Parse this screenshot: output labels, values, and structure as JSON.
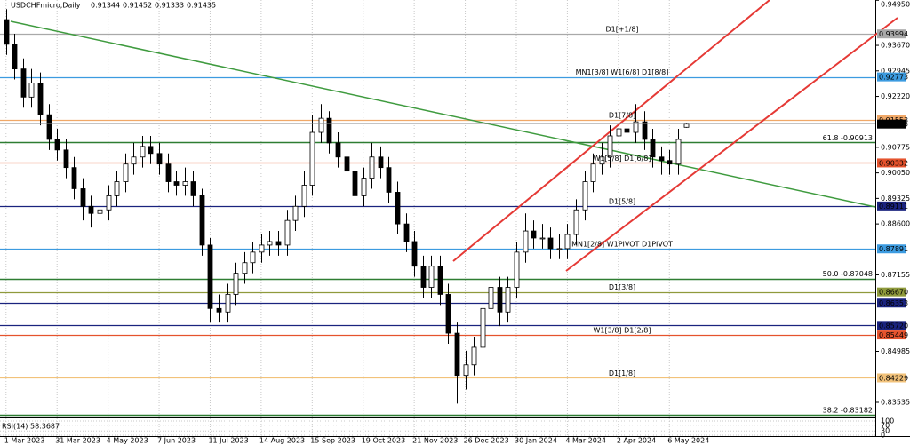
{
  "chart_data": {
    "type": "candlestick",
    "title": "USDCHFmicro,Daily",
    "categories": [
      "1 Mar 2023",
      null,
      null,
      null,
      null,
      null,
      "31 Mar 2023",
      null,
      null,
      null,
      null,
      null,
      "4 May 2023",
      null,
      null,
      null,
      null,
      null,
      "7 Jun 2023",
      null,
      null,
      null,
      null,
      null,
      "11 Jul 2023",
      null,
      null,
      null,
      null,
      null,
      "14 Aug 2023",
      null,
      null,
      null,
      null,
      null,
      "15 Sep 2023",
      null,
      null,
      null,
      null,
      null,
      "19 Oct 2023",
      null,
      null,
      null,
      null,
      null,
      "21 Nov 2023",
      null,
      null,
      null,
      null,
      null,
      "26 Dec 2023",
      null,
      null,
      null,
      null,
      null,
      "30 Jan 2024",
      null,
      null,
      null,
      null,
      null,
      "4 Mar 2024",
      null,
      null,
      null,
      null,
      null,
      "2 Apr 2024",
      null,
      null,
      null,
      null,
      null,
      "6 May 2024",
      null,
      null
    ],
    "open": [
      0.944,
      0.937,
      0.93,
      0.922,
      0.926,
      0.917,
      0.91,
      0.907,
      0.902,
      0.896,
      0.891,
      0.889,
      0.89,
      0.894,
      0.898,
      0.903,
      0.905,
      0.908,
      0.906,
      0.903,
      0.898,
      0.897,
      0.898,
      0.894,
      0.88,
      0.862,
      0.861,
      0.866,
      0.872,
      0.875,
      0.878,
      0.88,
      0.881,
      0.88,
      0.887,
      0.891,
      0.897,
      0.912,
      0.916,
      0.909,
      0.905,
      0.901,
      0.894,
      0.899,
      0.905,
      0.902,
      0.895,
      0.886,
      0.881,
      0.874,
      0.868,
      0.874,
      0.866,
      0.855,
      0.843,
      0.846,
      0.851,
      0.862,
      0.868,
      0.861,
      0.868,
      0.878,
      0.884,
      0.882,
      0.882,
      0.879,
      0.879,
      0.883,
      0.89,
      0.898,
      0.903,
      0.905,
      0.911,
      0.913,
      0.912,
      0.915,
      0.91,
      0.905,
      0.904,
      0.903,
      0.91344
    ],
    "high": [
      0.947,
      0.94,
      0.933,
      0.93,
      0.929,
      0.92,
      0.913,
      0.91,
      0.905,
      0.899,
      0.894,
      0.893,
      0.897,
      0.901,
      0.906,
      0.909,
      0.911,
      0.911,
      0.909,
      0.906,
      0.901,
      0.902,
      0.901,
      0.896,
      0.882,
      0.866,
      0.869,
      0.875,
      0.878,
      0.881,
      0.883,
      0.884,
      0.884,
      0.89,
      0.894,
      0.901,
      0.917,
      0.92,
      0.918,
      0.912,
      0.908,
      0.904,
      0.902,
      0.909,
      0.908,
      0.905,
      0.898,
      0.889,
      0.884,
      0.877,
      0.877,
      0.877,
      0.869,
      0.858,
      0.85,
      0.854,
      0.865,
      0.872,
      0.871,
      0.871,
      0.881,
      0.889,
      0.887,
      0.886,
      0.885,
      0.883,
      0.886,
      0.893,
      0.901,
      0.906,
      0.909,
      0.914,
      0.916,
      0.916,
      0.92,
      0.918,
      0.913,
      0.908,
      0.907,
      0.913,
      0.91452
    ],
    "low": [
      0.934,
      0.927,
      0.919,
      0.919,
      0.914,
      0.907,
      0.904,
      0.899,
      0.893,
      0.887,
      0.885,
      0.886,
      0.887,
      0.891,
      0.895,
      0.9,
      0.902,
      0.903,
      0.9,
      0.895,
      0.894,
      0.894,
      0.891,
      0.877,
      0.858,
      0.858,
      0.858,
      0.863,
      0.869,
      0.872,
      0.875,
      0.877,
      0.877,
      0.877,
      0.884,
      0.888,
      0.894,
      0.909,
      0.906,
      0.902,
      0.898,
      0.891,
      0.891,
      0.896,
      0.899,
      0.892,
      0.883,
      0.878,
      0.871,
      0.865,
      0.865,
      0.863,
      0.852,
      0.835,
      0.839,
      0.843,
      0.848,
      0.859,
      0.857,
      0.858,
      0.865,
      0.875,
      0.879,
      0.879,
      0.876,
      0.876,
      0.876,
      0.88,
      0.887,
      0.895,
      0.9,
      0.902,
      0.908,
      0.909,
      0.909,
      0.907,
      0.902,
      0.9,
      0.9,
      0.9,
      0.91333
    ],
    "close": [
      0.937,
      0.93,
      0.922,
      0.926,
      0.917,
      0.91,
      0.907,
      0.902,
      0.896,
      0.891,
      0.889,
      0.89,
      0.894,
      0.898,
      0.903,
      0.905,
      0.908,
      0.906,
      0.903,
      0.898,
      0.897,
      0.898,
      0.894,
      0.88,
      0.862,
      0.861,
      0.866,
      0.872,
      0.875,
      0.878,
      0.88,
      0.881,
      0.88,
      0.887,
      0.891,
      0.897,
      0.912,
      0.916,
      0.909,
      0.905,
      0.901,
      0.894,
      0.899,
      0.905,
      0.902,
      0.895,
      0.886,
      0.881,
      0.874,
      0.868,
      0.874,
      0.866,
      0.855,
      0.843,
      0.846,
      0.851,
      0.862,
      0.868,
      0.861,
      0.868,
      0.878,
      0.884,
      0.882,
      0.882,
      0.879,
      0.879,
      0.883,
      0.89,
      0.898,
      0.903,
      0.905,
      0.911,
      0.913,
      0.912,
      0.915,
      0.91,
      0.905,
      0.904,
      0.903,
      0.91,
      0.91435
    ],
    "ylim": [
      0.83157,
      0.94957
    ],
    "yticks": [
      {
        "value": 0.9495,
        "label": "0.94950"
      },
      {
        "value": 0.9367,
        "label": "0.93670"
      },
      0.92945,
      {
        "value": 0.9222,
        "label": "0.92220"
      },
      0.90775,
      {
        "value": 0.9005,
        "label": "0.90050"
      },
      0.89325,
      {
        "value": 0.886,
        "label": "0.88600"
      },
      0.87155,
      0.84985,
      0.83535
    ],
    "grid": true,
    "levels": [
      {
        "value": 0.93994,
        "label": "D1[+1/8]",
        "color": "#a9a9a9",
        "price_box": true
      },
      {
        "value": 0.92773,
        "label": "MN1[3/8] W1[6/8] D1[8/8]",
        "color": "#3c9be0",
        "price_box": true
      },
      {
        "value": 0.91553,
        "label": "D1[7/8]",
        "color": "#f0a868",
        "price_box": true
      },
      {
        "value": 0.90913,
        "label": "61.8 -0.90913",
        "color": "#2e7d32",
        "price_box": false
      },
      {
        "value": 0.90332,
        "label": "W1[5/8] D1[6/8]",
        "color": "#e5532d",
        "price_box": true
      },
      {
        "value": 0.89111,
        "label": "D1[5/8]",
        "color": "#1a237e",
        "price_box": true
      },
      {
        "value": 0.87891,
        "label": "MN1[2/8] W1PIVOT D1PIVOT",
        "color": "#3c9be0",
        "price_box": true
      },
      {
        "value": 0.87048,
        "label": "50.0 -0.87048",
        "color": "#2e7d32",
        "price_box": false
      },
      {
        "value": 0.8667,
        "label": "D1[3/8]",
        "color": "#8f9a3c",
        "price_box": true,
        "price_label": "0.86670"
      },
      {
        "value": 0.86353,
        "color": "#1a237e",
        "price_box": true
      },
      {
        "value": 0.8572,
        "color": "#1a237e",
        "price_box": true,
        "price_label": "0.85720"
      },
      {
        "value": 0.85449,
        "label": "W1[3/8] D1[2/8]",
        "color": "#e5532d",
        "price_box": true
      },
      {
        "value": 0.84229,
        "label": "D1[1/8]",
        "color": "#f2c27a",
        "price_box": true
      },
      {
        "value": 0.83182,
        "label": "38.2 -0.83182",
        "color": "#2e7d32",
        "price_box": false
      }
    ],
    "rsi": {
      "label": "RSI(14)",
      "value": 58.3687,
      "ylim": [
        0,
        100
      ],
      "yticks": [
        100,
        70,
        30,
        0
      ]
    }
  }
}
